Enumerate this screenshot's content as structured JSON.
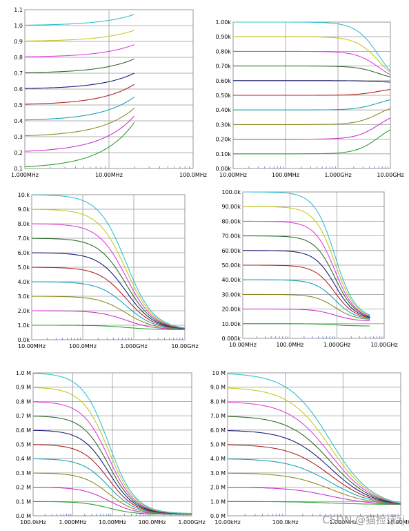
{
  "palette": [
    "#2ca02c",
    "#cc33cc",
    "#8b8b22",
    "#17a2b8",
    "#b22222",
    "#1a1a7a",
    "#2e6b2e",
    "#e040e0",
    "#c8c820",
    "#30c0d0"
  ],
  "ylabel_color": "#1f8fa0",
  "watermark": "CSDN @猫捡球zj",
  "chart_data": [
    {
      "type": "line",
      "xscale": "log",
      "xlim": [
        1000000,
        100000000
      ],
      "xticks": [
        "1.000MHz",
        "10.00MHz",
        "100.0MHz"
      ],
      "yticks": [
        "0.1",
        "0.2",
        "0.3",
        "0.4",
        "0.5",
        "0.6",
        "0.7",
        "0.8",
        "0.9",
        "1.0",
        "1.1"
      ],
      "ylim": [
        0.1,
        1.1
      ],
      "grid": true,
      "curve": {
        "rise": true,
        "x_end": 20000000,
        "corner": 25000000,
        "order": 1.1
      },
      "series": [
        {
          "values_start": 0.1,
          "values_end": 0.39
        },
        {
          "values_start": 0.2,
          "values_end": 0.43
        },
        {
          "values_start": 0.3,
          "values_end": 0.48
        },
        {
          "values_start": 0.4,
          "values_end": 0.55
        },
        {
          "values_start": 0.5,
          "values_end": 0.63
        },
        {
          "values_start": 0.6,
          "values_end": 0.7
        },
        {
          "values_start": 0.7,
          "values_end": 0.79
        },
        {
          "values_start": 0.8,
          "values_end": 0.88
        },
        {
          "values_start": 0.9,
          "values_end": 0.97
        },
        {
          "values_start": 1.0,
          "values_end": 1.07
        }
      ]
    },
    {
      "type": "line",
      "xscale": "log",
      "xlim": [
        10000000,
        10000000000
      ],
      "xticks": [
        "10.00MHz",
        "100.0MHz",
        "1.000GHz",
        "10.00GHz"
      ],
      "yticks": [
        "0.00k",
        "0.10k",
        "0.20k",
        "0.30k",
        "0.40k",
        "0.50k",
        "0.60k",
        "0.70k",
        "0.80k",
        "0.90k",
        "1.00k"
      ],
      "ylim": [
        0,
        1000
      ],
      "grid": true,
      "curve": {
        "rise": false,
        "x_end": 10000000000,
        "corner": 6000000000,
        "order": 2
      },
      "series": [
        {
          "values_start": 100,
          "values_end": 265
        },
        {
          "values_start": 200,
          "values_end": 345
        },
        {
          "values_start": 300,
          "values_end": 410
        },
        {
          "values_start": 400,
          "values_end": 470
        },
        {
          "values_start": 500,
          "values_end": 540
        },
        {
          "values_start": 600,
          "values_end": 590
        },
        {
          "values_start": 700,
          "values_end": 625
        },
        {
          "values_start": 800,
          "values_end": 640
        },
        {
          "values_start": 900,
          "values_end": 655
        },
        {
          "values_start": 1000,
          "values_end": 665
        }
      ]
    },
    {
      "type": "line",
      "xscale": "log",
      "xlim": [
        10000000,
        10000000000
      ],
      "xticks": [
        "10.00MHz",
        "100.0MHz",
        "1.000GHz",
        "10.00GHz"
      ],
      "yticks": [
        "0.0k",
        "1.0k",
        "2.0k",
        "3.0k",
        "4.0k",
        "5.0k",
        "6.0k",
        "7.0k",
        "8.0k",
        "9.0k",
        "10.k"
      ],
      "ylim": [
        0,
        10000
      ],
      "grid": true,
      "curve": {
        "rise": false,
        "x_end": 10000000000,
        "corner": 700000000,
        "order": 1.6
      },
      "series": [
        {
          "values_start": 1000,
          "values_end": 700
        },
        {
          "values_start": 2000,
          "values_end": 720
        },
        {
          "values_start": 3000,
          "values_end": 740
        },
        {
          "values_start": 4000,
          "values_end": 760
        },
        {
          "values_start": 5000,
          "values_end": 770
        },
        {
          "values_start": 6000,
          "values_end": 780
        },
        {
          "values_start": 7000,
          "values_end": 790
        },
        {
          "values_start": 8000,
          "values_end": 800
        },
        {
          "values_start": 9000,
          "values_end": 810
        },
        {
          "values_start": 10000,
          "values_end": 820
        }
      ]
    },
    {
      "type": "line",
      "xscale": "log",
      "xlim": [
        10000000,
        10000000000
      ],
      "xticks": [
        "10.00MHz",
        "100.0MHz",
        "1.000GHz",
        "10.00GHz"
      ],
      "yticks": [
        "0.000k",
        "10.00k",
        "20.00k",
        "30.00k",
        "40.00k",
        "50.00k",
        "60.00k",
        "70.00k",
        "80.00k",
        "90.00k",
        "100.0k"
      ],
      "ylim": [
        0,
        100000
      ],
      "grid": true,
      "curve": {
        "rise": false,
        "x_end": 5000000000,
        "corner": 900000000,
        "order": 2
      },
      "series": [
        {
          "values_start": 10000,
          "values_end": 8500
        },
        {
          "values_start": 20000,
          "values_end": 12000
        },
        {
          "values_start": 30000,
          "values_end": 13000
        },
        {
          "values_start": 40000,
          "values_end": 13500
        },
        {
          "values_start": 50000,
          "values_end": 14000
        },
        {
          "values_start": 60000,
          "values_end": 14500
        },
        {
          "values_start": 70000,
          "values_end": 15000
        },
        {
          "values_start": 80000,
          "values_end": 15000
        },
        {
          "values_start": 90000,
          "values_end": 15500
        },
        {
          "values_start": 100000,
          "values_end": 16000
        }
      ]
    },
    {
      "type": "line",
      "xscale": "log",
      "xlim": [
        100000,
        1000000000
      ],
      "xticks": [
        "100.0kHz",
        "1.000MHz",
        "10.00MHz",
        "100.0MHz",
        "1.000GHz"
      ],
      "yticks": [
        "0.0 M",
        "0.1 M",
        "0.2 M",
        "0.3 M",
        "0.4 M",
        "0.5 M",
        "0.6 M",
        "0.7 M",
        "0.8 M",
        "0.9 M",
        "1.0 M"
      ],
      "ylim": [
        0,
        1000000
      ],
      "grid": true,
      "curve": {
        "rise": false,
        "x_end": 1000000000,
        "corner": 8000000,
        "order": 1.3
      },
      "series": [
        {
          "values_start": 100000,
          "values_end": 10000
        },
        {
          "values_start": 200000,
          "values_end": 12000
        },
        {
          "values_start": 300000,
          "values_end": 13000
        },
        {
          "values_start": 400000,
          "values_end": 14000
        },
        {
          "values_start": 500000,
          "values_end": 14500
        },
        {
          "values_start": 600000,
          "values_end": 15000
        },
        {
          "values_start": 700000,
          "values_end": 15500
        },
        {
          "values_start": 800000,
          "values_end": 16000
        },
        {
          "values_start": 900000,
          "values_end": 16500
        },
        {
          "values_start": 1000000,
          "values_end": 17000
        }
      ]
    },
    {
      "type": "line",
      "xscale": "log",
      "xlim": [
        10000,
        10000000
      ],
      "xticks": [
        "10.00kHz",
        "100.0kHz",
        "1.000MHz",
        "10.00MHz"
      ],
      "yticks": [
        "0.0 M",
        "1.0 M",
        "2.0 M",
        "3.0 M",
        "4.0 M",
        "5.0 M",
        "6.0 M",
        "7.0 M",
        "8.0 M",
        "9.0 M",
        "10 M"
      ],
      "ylim": [
        0,
        10000000
      ],
      "grid": true,
      "curve": {
        "rise": false,
        "x_end": 10000000,
        "corner": 600000,
        "order": 1.2
      },
      "series": [
        {
          "values_start": 1000000,
          "values_end": 800000
        },
        {
          "values_start": 2000000,
          "values_end": 810000
        },
        {
          "values_start": 3000000,
          "values_end": 820000
        },
        {
          "values_start": 4000000,
          "values_end": 830000
        },
        {
          "values_start": 5000000,
          "values_end": 840000
        },
        {
          "values_start": 6000000,
          "values_end": 850000
        },
        {
          "values_start": 7000000,
          "values_end": 860000
        },
        {
          "values_start": 8000000,
          "values_end": 870000
        },
        {
          "values_start": 9000000,
          "values_end": 880000
        },
        {
          "values_start": 10000000,
          "values_end": 890000
        }
      ]
    }
  ]
}
